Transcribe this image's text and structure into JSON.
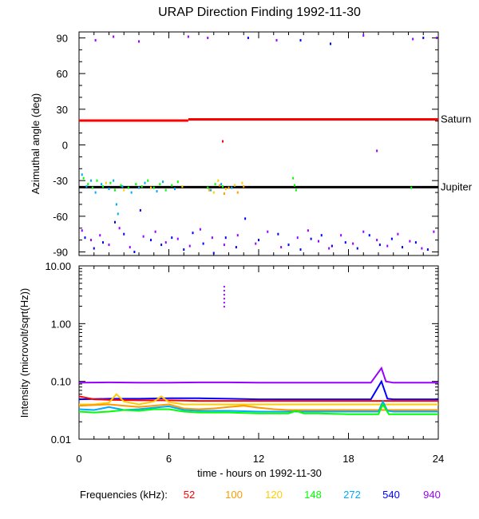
{
  "chart_data": [
    {
      "type": "scatter",
      "title": "URAP Direction Finding  1992-11-30",
      "xlabel": "",
      "ylabel": "Azimuthal angle (deg)",
      "xlim": [
        0,
        24
      ],
      "ylim": [
        -93,
        95
      ],
      "yticks": [
        90,
        60,
        30,
        0,
        -30,
        -60,
        -90
      ],
      "ytick_labels": [
        "90",
        "60",
        "30",
        "0",
        "-30",
        "-60",
        "-90"
      ],
      "grid": false,
      "reference_lines": [
        {
          "label": "Saturn",
          "color": "#ff0000",
          "segments": [
            {
              "x": [
                0,
                7.3
              ],
              "y": 20.5
            },
            {
              "x": [
                7.3,
                24
              ],
              "y": 21.5
            }
          ]
        },
        {
          "label": "Jupiter",
          "color": "#000000",
          "segments": [
            {
              "x": [
                0,
                24
              ],
              "y": -35.5
            }
          ]
        }
      ],
      "series": [
        {
          "freq_khz": 148,
          "color": "#00ff00",
          "points": [
            [
              0.3,
              -28
            ],
            [
              0.6,
              -33
            ],
            [
              0.9,
              -36
            ],
            [
              1.2,
              -30
            ],
            [
              1.6,
              -35
            ],
            [
              2.1,
              -32
            ],
            [
              2.4,
              -38
            ],
            [
              2.8,
              -34
            ],
            [
              3.3,
              -36
            ],
            [
              3.8,
              -33
            ],
            [
              4.2,
              -35
            ],
            [
              4.6,
              -30
            ],
            [
              5.0,
              -36
            ],
            [
              5.4,
              -33
            ],
            [
              5.8,
              -38
            ],
            [
              6.2,
              -34
            ],
            [
              6.6,
              -31
            ],
            [
              8.6,
              -36
            ],
            [
              9.1,
              -33
            ],
            [
              9.6,
              -35
            ],
            [
              14.3,
              -28
            ],
            [
              14.4,
              -34
            ],
            [
              14.5,
              -38
            ],
            [
              22.2,
              -36
            ]
          ]
        },
        {
          "freq_khz": 272,
          "color": "#00aaff",
          "points": [
            [
              0.2,
              -25
            ],
            [
              0.5,
              -35
            ],
            [
              0.8,
              -30
            ],
            [
              1.1,
              -40
            ],
            [
              1.5,
              -33
            ],
            [
              2.0,
              -37
            ],
            [
              2.3,
              -30
            ],
            [
              2.5,
              -50
            ],
            [
              2.6,
              -58
            ],
            [
              2.9,
              -35
            ],
            [
              3.5,
              -40
            ],
            [
              4.0,
              -36
            ],
            [
              4.4,
              -32
            ],
            [
              5.2,
              -39
            ],
            [
              5.6,
              -31
            ],
            [
              6.4,
              -37
            ],
            [
              8.8,
              -38
            ],
            [
              9.5,
              -33
            ],
            [
              10.2,
              -36
            ]
          ]
        },
        {
          "freq_khz": 120,
          "color": "#ffcc00",
          "points": [
            [
              1.8,
              -32
            ],
            [
              3.0,
              -38
            ],
            [
              4.8,
              -36
            ],
            [
              6.9,
              -35
            ],
            [
              9.0,
              -40
            ],
            [
              9.3,
              -30
            ],
            [
              9.8,
              -37
            ],
            [
              10.4,
              -34
            ],
            [
              10.9,
              -32
            ]
          ]
        },
        {
          "freq_khz": 100,
          "color": "#ff9900",
          "points": [
            [
              8.7,
              -38
            ],
            [
              9.4,
              -34
            ],
            [
              9.7,
              -41
            ],
            [
              10.0,
              -36
            ],
            [
              10.6,
              -40
            ],
            [
              11.0,
              -35
            ]
          ]
        },
        {
          "freq_khz": 52,
          "color": "#ff0000",
          "points": [
            [
              9.6,
              3
            ]
          ]
        },
        {
          "freq_khz": 540,
          "color": "#0000ff",
          "points": [
            [
              0.4,
              -78
            ],
            [
              1.0,
              -87
            ],
            [
              1.6,
              -82
            ],
            [
              2.4,
              -65
            ],
            [
              3.0,
              -75
            ],
            [
              3.7,
              -90
            ],
            [
              4.1,
              -55
            ],
            [
              4.8,
              -80
            ],
            [
              5.5,
              -84
            ],
            [
              6.2,
              -78
            ],
            [
              7.0,
              -88
            ],
            [
              7.6,
              -74
            ],
            [
              8.3,
              -83
            ],
            [
              9.0,
              -91
            ],
            [
              9.8,
              -78
            ],
            [
              10.5,
              -86
            ],
            [
              11.1,
              -62
            ],
            [
              12.0,
              -80
            ],
            [
              13.3,
              -75
            ],
            [
              14.0,
              -84
            ],
            [
              14.8,
              -88
            ],
            [
              15.5,
              -79
            ],
            [
              16.2,
              -76
            ],
            [
              16.9,
              -85
            ],
            [
              17.8,
              -82
            ],
            [
              18.6,
              -87
            ],
            [
              19.4,
              -76
            ],
            [
              20.1,
              -84
            ],
            [
              20.9,
              -79
            ],
            [
              21.6,
              -86
            ],
            [
              22.5,
              -82
            ],
            [
              23.3,
              -88
            ],
            [
              11.3,
              90
            ],
            [
              14.8,
              88
            ],
            [
              16.8,
              85
            ],
            [
              23.0,
              90
            ]
          ]
        },
        {
          "freq_khz": 940,
          "color": "#9900ff",
          "points": [
            [
              0.2,
              -72
            ],
            [
              0.8,
              -80
            ],
            [
              1.4,
              -76
            ],
            [
              2.0,
              -84
            ],
            [
              2.7,
              -70
            ],
            [
              3.4,
              -86
            ],
            [
              4.3,
              -77
            ],
            [
              5.1,
              -73
            ],
            [
              5.8,
              -82
            ],
            [
              6.6,
              -79
            ],
            [
              7.4,
              -85
            ],
            [
              8.1,
              -71
            ],
            [
              8.9,
              -78
            ],
            [
              9.7,
              -84
            ],
            [
              10.6,
              -76
            ],
            [
              11.8,
              -83
            ],
            [
              12.6,
              -73
            ],
            [
              13.5,
              -86
            ],
            [
              14.6,
              -78
            ],
            [
              15.3,
              -72
            ],
            [
              16.0,
              -81
            ],
            [
              16.7,
              -87
            ],
            [
              17.5,
              -76
            ],
            [
              18.3,
              -83
            ],
            [
              19.0,
              -73
            ],
            [
              19.9,
              -80
            ],
            [
              20.6,
              -85
            ],
            [
              21.3,
              -75
            ],
            [
              22.1,
              -81
            ],
            [
              22.9,
              -87
            ],
            [
              23.7,
              -73
            ],
            [
              1.1,
              88
            ],
            [
              2.3,
              91
            ],
            [
              4.0,
              87
            ],
            [
              7.3,
              91
            ],
            [
              8.6,
              90
            ],
            [
              13.2,
              88
            ],
            [
              19.0,
              92
            ],
            [
              19.9,
              -5
            ],
            [
              22.3,
              89
            ],
            [
              23.9,
              90
            ]
          ]
        }
      ]
    },
    {
      "type": "line",
      "xlabel": "time - hours on 1992-11-30",
      "ylabel": "Intensity (microvolt/sqrt(Hz))",
      "xlim": [
        0,
        24
      ],
      "ylim": [
        0.01,
        10.0
      ],
      "yscale": "log",
      "yticks": [
        10.0,
        1.0,
        0.1,
        0.01
      ],
      "ytick_labels": [
        "10.00",
        "1.00",
        "0.10",
        "0.01"
      ],
      "xticks": [
        0,
        6,
        12,
        18,
        24
      ],
      "xtick_labels": [
        "0",
        "6",
        "12",
        "18",
        "24"
      ],
      "grid": false,
      "series": [
        {
          "freq_khz": 940,
          "color": "#9900ff",
          "x": [
            0,
            2,
            4,
            6,
            8,
            10,
            12,
            14,
            16,
            18,
            19.5,
            20.2,
            20.5,
            21,
            22,
            24
          ],
          "y": [
            0.095,
            0.096,
            0.095,
            0.095,
            0.096,
            0.096,
            0.095,
            0.095,
            0.095,
            0.095,
            0.095,
            0.17,
            0.1,
            0.095,
            0.095,
            0.095
          ]
        },
        {
          "freq_khz": 540,
          "color": "#0000ff",
          "x": [
            0,
            2,
            4,
            6,
            8,
            10,
            12,
            14,
            16,
            18,
            19.5,
            20.2,
            20.6,
            21,
            22,
            24
          ],
          "y": [
            0.049,
            0.05,
            0.05,
            0.051,
            0.051,
            0.05,
            0.049,
            0.049,
            0.049,
            0.049,
            0.049,
            0.1,
            0.05,
            0.049,
            0.049,
            0.049
          ]
        },
        {
          "freq_khz": 52,
          "color": "#ff0000",
          "x": [
            0,
            0.5,
            1,
            2,
            4,
            6,
            8,
            10,
            12,
            14,
            16,
            18,
            20,
            22,
            24
          ],
          "y": [
            0.055,
            0.052,
            0.049,
            0.048,
            0.047,
            0.047,
            0.046,
            0.046,
            0.046,
            0.046,
            0.046,
            0.046,
            0.046,
            0.046,
            0.046
          ]
        },
        {
          "freq_khz": 120,
          "color": "#ffcc00",
          "x": [
            0,
            1,
            2,
            2.5,
            3,
            4,
            5,
            5.5,
            6,
            7,
            8,
            10,
            12,
            14,
            16,
            18,
            20,
            22,
            24
          ],
          "y": [
            0.04,
            0.04,
            0.043,
            0.06,
            0.045,
            0.04,
            0.045,
            0.055,
            0.044,
            0.04,
            0.04,
            0.04,
            0.04,
            0.04,
            0.04,
            0.04,
            0.04,
            0.04,
            0.04
          ]
        },
        {
          "freq_khz": 100,
          "color": "#ff9900",
          "x": [
            0,
            2,
            4,
            6,
            7,
            8,
            9,
            10,
            11,
            12,
            13,
            14,
            16,
            18,
            20,
            22,
            24
          ],
          "y": [
            0.038,
            0.04,
            0.036,
            0.04,
            0.034,
            0.033,
            0.034,
            0.036,
            0.038,
            0.035,
            0.033,
            0.032,
            0.032,
            0.032,
            0.032,
            0.032,
            0.032
          ]
        },
        {
          "freq_khz": 272,
          "color": "#00aaff",
          "x": [
            0,
            1,
            2,
            3,
            4,
            5,
            6,
            7,
            8,
            10,
            12,
            14,
            16,
            18,
            20,
            20.3,
            20.6,
            21,
            22,
            24
          ],
          "y": [
            0.033,
            0.032,
            0.036,
            0.032,
            0.033,
            0.035,
            0.037,
            0.032,
            0.031,
            0.031,
            0.03,
            0.03,
            0.03,
            0.03,
            0.03,
            0.045,
            0.031,
            0.03,
            0.03,
            0.03
          ]
        },
        {
          "freq_khz": 148,
          "color": "#00ff00",
          "x": [
            0,
            1,
            2,
            3,
            4,
            5,
            6,
            7,
            8,
            10,
            12,
            14,
            14.5,
            15,
            16,
            18,
            20,
            20.3,
            20.7,
            21,
            22,
            24
          ],
          "y": [
            0.03,
            0.029,
            0.03,
            0.032,
            0.031,
            0.033,
            0.033,
            0.03,
            0.029,
            0.029,
            0.028,
            0.028,
            0.031,
            0.028,
            0.028,
            0.027,
            0.027,
            0.04,
            0.027,
            0.027,
            0.027,
            0.027
          ]
        },
        {
          "freq_khz": 940,
          "color": "#9900ff",
          "x": [
            9.7,
            9.7
          ],
          "y": [
            2.0,
            4.5
          ],
          "style": "dots"
        }
      ]
    }
  ],
  "legend": {
    "title": "Frequencies (kHz):",
    "items": [
      {
        "label": "52",
        "color": "#ff0000"
      },
      {
        "label": "100",
        "color": "#ff9900"
      },
      {
        "label": "120",
        "color": "#ffcc00"
      },
      {
        "label": "148",
        "color": "#00ff00"
      },
      {
        "label": "272",
        "color": "#00aaff"
      },
      {
        "label": "540",
        "color": "#0000ff"
      },
      {
        "label": "940",
        "color": "#9900ff"
      }
    ]
  }
}
